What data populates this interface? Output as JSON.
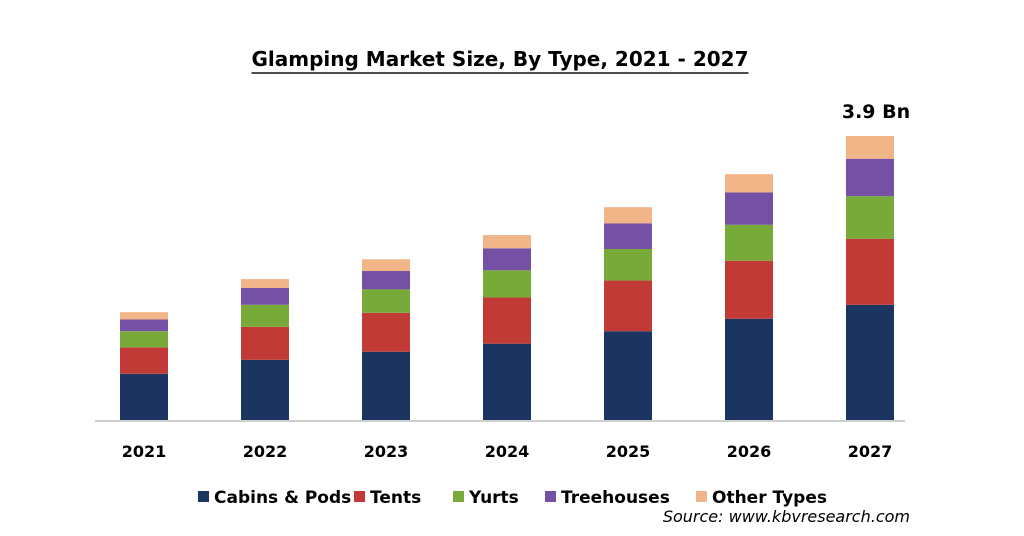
{
  "chart_data": {
    "type": "bar",
    "stacked": true,
    "title": "Glamping Market Size, By Type, 2021 - 2027",
    "source": "Source: www.kbvresearch.com",
    "categories": [
      "2021",
      "2022",
      "2023",
      "2024",
      "2025",
      "2026",
      "2027"
    ],
    "series": [
      {
        "name": "Cabins & Pods",
        "color": "#1c3560",
        "values": [
          0.63,
          0.82,
          0.93,
          1.04,
          1.21,
          1.38,
          1.57
        ]
      },
      {
        "name": "Tents",
        "color": "#c23a35",
        "values": [
          0.36,
          0.45,
          0.53,
          0.63,
          0.69,
          0.79,
          0.9
        ]
      },
      {
        "name": "Yurts",
        "color": "#78aa3a",
        "values": [
          0.22,
          0.3,
          0.32,
          0.37,
          0.43,
          0.49,
          0.58
        ]
      },
      {
        "name": "Treehouses",
        "color": "#7451a5",
        "values": [
          0.16,
          0.23,
          0.25,
          0.3,
          0.35,
          0.44,
          0.51
        ]
      },
      {
        "name": "Other Types",
        "color": "#f2b588",
        "values": [
          0.1,
          0.12,
          0.16,
          0.18,
          0.22,
          0.25,
          0.31
        ]
      }
    ],
    "annotations": [
      {
        "category": "2027",
        "text": "3.9 Bn"
      }
    ],
    "legend_position": "bottom",
    "grid": false
  }
}
